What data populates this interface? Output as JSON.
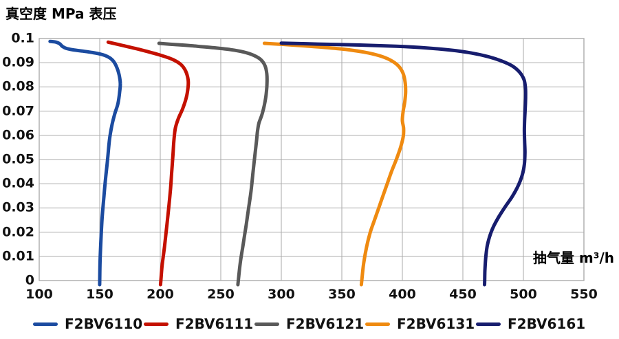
{
  "title": "真空度 MPa 表压",
  "x_axis_label": "抽气量 m³/h",
  "chart_data": {
    "type": "line",
    "title": "真空度 MPa 表压",
    "xlabel": "抽气量 m³/h",
    "ylabel": "真空度 MPa 表压",
    "xlim": [
      100,
      550
    ],
    "ylim": [
      0,
      0.1
    ],
    "x_ticks": [
      100,
      150,
      200,
      250,
      300,
      350,
      400,
      450,
      500,
      550
    ],
    "y_ticks": [
      0,
      0.01,
      0.02,
      0.03,
      0.04,
      0.05,
      0.06,
      0.07,
      0.08,
      0.09,
      0.1
    ],
    "grid": true,
    "grid_color": "#aaaaaa",
    "legend_position": "bottom",
    "series": [
      {
        "name": "F2BV6110",
        "color": "#1b4ba0",
        "points": [
          [
            109,
            0.0988
          ],
          [
            114,
            0.0985
          ],
          [
            117,
            0.0978
          ],
          [
            119,
            0.0968
          ],
          [
            122,
            0.096
          ],
          [
            128,
            0.0953
          ],
          [
            136,
            0.0948
          ],
          [
            144,
            0.0942
          ],
          [
            151,
            0.0935
          ],
          [
            157,
            0.0924
          ],
          [
            161,
            0.0908
          ],
          [
            164,
            0.0882
          ],
          [
            166,
            0.085
          ],
          [
            167,
            0.0815
          ],
          [
            166.5,
            0.078
          ],
          [
            165,
            0.073
          ],
          [
            162.5,
            0.069
          ],
          [
            160,
            0.064
          ],
          [
            158,
            0.058
          ],
          [
            156.5,
            0.05
          ],
          [
            155,
            0.043
          ],
          [
            153.5,
            0.035
          ],
          [
            152,
            0.026
          ],
          [
            151,
            0.017
          ],
          [
            150.3,
            0.008
          ],
          [
            150,
            0
          ]
        ]
      },
      {
        "name": "F2BV6111",
        "color": "#c41000",
        "points": [
          [
            157,
            0.0985
          ],
          [
            170,
            0.097
          ],
          [
            185,
            0.0952
          ],
          [
            199,
            0.0933
          ],
          [
            210,
            0.0914
          ],
          [
            217,
            0.0893
          ],
          [
            221,
            0.0865
          ],
          [
            223,
            0.083
          ],
          [
            223,
            0.08
          ],
          [
            221.5,
            0.0755
          ],
          [
            218.5,
            0.071
          ],
          [
            215,
            0.067
          ],
          [
            212.5,
            0.063
          ],
          [
            211.3,
            0.058
          ],
          [
            210.5,
            0.052
          ],
          [
            209.5,
            0.045
          ],
          [
            208.5,
            0.038
          ],
          [
            207,
            0.03
          ],
          [
            205.5,
            0.023
          ],
          [
            203.5,
            0.014
          ],
          [
            201.5,
            0.006
          ],
          [
            200.5,
            0
          ]
        ]
      },
      {
        "name": "F2BV6121",
        "color": "#595959",
        "points": [
          [
            199,
            0.098
          ],
          [
            212,
            0.0975
          ],
          [
            228,
            0.0969
          ],
          [
            244,
            0.0962
          ],
          [
            258,
            0.0954
          ],
          [
            269,
            0.0944
          ],
          [
            277,
            0.0931
          ],
          [
            283,
            0.0913
          ],
          [
            286.5,
            0.0888
          ],
          [
            288,
            0.0855
          ],
          [
            288.2,
            0.0815
          ],
          [
            287.5,
            0.077
          ],
          [
            286,
            0.0725
          ],
          [
            284,
            0.0685
          ],
          [
            281.5,
            0.065
          ],
          [
            280.3,
            0.0615
          ],
          [
            279.5,
            0.0575
          ],
          [
            278,
            0.051
          ],
          [
            276.5,
            0.044
          ],
          [
            275,
            0.037
          ],
          [
            273,
            0.03
          ],
          [
            271,
            0.023
          ],
          [
            268.5,
            0.015
          ],
          [
            266,
            0.007
          ],
          [
            264.5,
            0
          ]
        ]
      },
      {
        "name": "F2BV6131",
        "color": "#ef8a10",
        "points": [
          [
            286,
            0.098
          ],
          [
            300,
            0.0976
          ],
          [
            318,
            0.097
          ],
          [
            336,
            0.0963
          ],
          [
            353,
            0.0955
          ],
          [
            368,
            0.0944
          ],
          [
            381,
            0.0929
          ],
          [
            390,
            0.0911
          ],
          [
            396.5,
            0.0888
          ],
          [
            400.5,
            0.0857
          ],
          [
            402.3,
            0.082
          ],
          [
            402.7,
            0.078
          ],
          [
            402,
            0.0738
          ],
          [
            400.7,
            0.07
          ],
          [
            400,
            0.0662
          ],
          [
            401,
            0.063
          ],
          [
            400.8,
            0.0597
          ],
          [
            398.5,
            0.055
          ],
          [
            395,
            0.05
          ],
          [
            391,
            0.045
          ],
          [
            387.5,
            0.04
          ],
          [
            384,
            0.035
          ],
          [
            380.5,
            0.03
          ],
          [
            377,
            0.025
          ],
          [
            373.5,
            0.02
          ],
          [
            370.5,
            0.014
          ],
          [
            368,
            0.007
          ],
          [
            366.5,
            0
          ]
        ]
      },
      {
        "name": "F2BV6161",
        "color": "#171d6e",
        "points": [
          [
            300,
            0.0981
          ],
          [
            330,
            0.0977
          ],
          [
            365,
            0.0973
          ],
          [
            395,
            0.0968
          ],
          [
            420,
            0.0961
          ],
          [
            440,
            0.0952
          ],
          [
            457,
            0.094
          ],
          [
            471,
            0.0925
          ],
          [
            482,
            0.0907
          ],
          [
            491,
            0.0886
          ],
          [
            497,
            0.086
          ],
          [
            500.5,
            0.083
          ],
          [
            501.7,
            0.0795
          ],
          [
            501.8,
            0.0755
          ],
          [
            501.5,
            0.071
          ],
          [
            501,
            0.0665
          ],
          [
            500.8,
            0.062
          ],
          [
            501,
            0.0575
          ],
          [
            501.3,
            0.053
          ],
          [
            500.8,
            0.048
          ],
          [
            499,
            0.0435
          ],
          [
            495.5,
            0.039
          ],
          [
            490.5,
            0.0345
          ],
          [
            485,
            0.0305
          ],
          [
            479.5,
            0.0262
          ],
          [
            475,
            0.022
          ],
          [
            472,
            0.018
          ],
          [
            470,
            0.014
          ],
          [
            468.8,
            0.009
          ],
          [
            468.2,
            0.004
          ],
          [
            468,
            0
          ]
        ]
      }
    ]
  }
}
